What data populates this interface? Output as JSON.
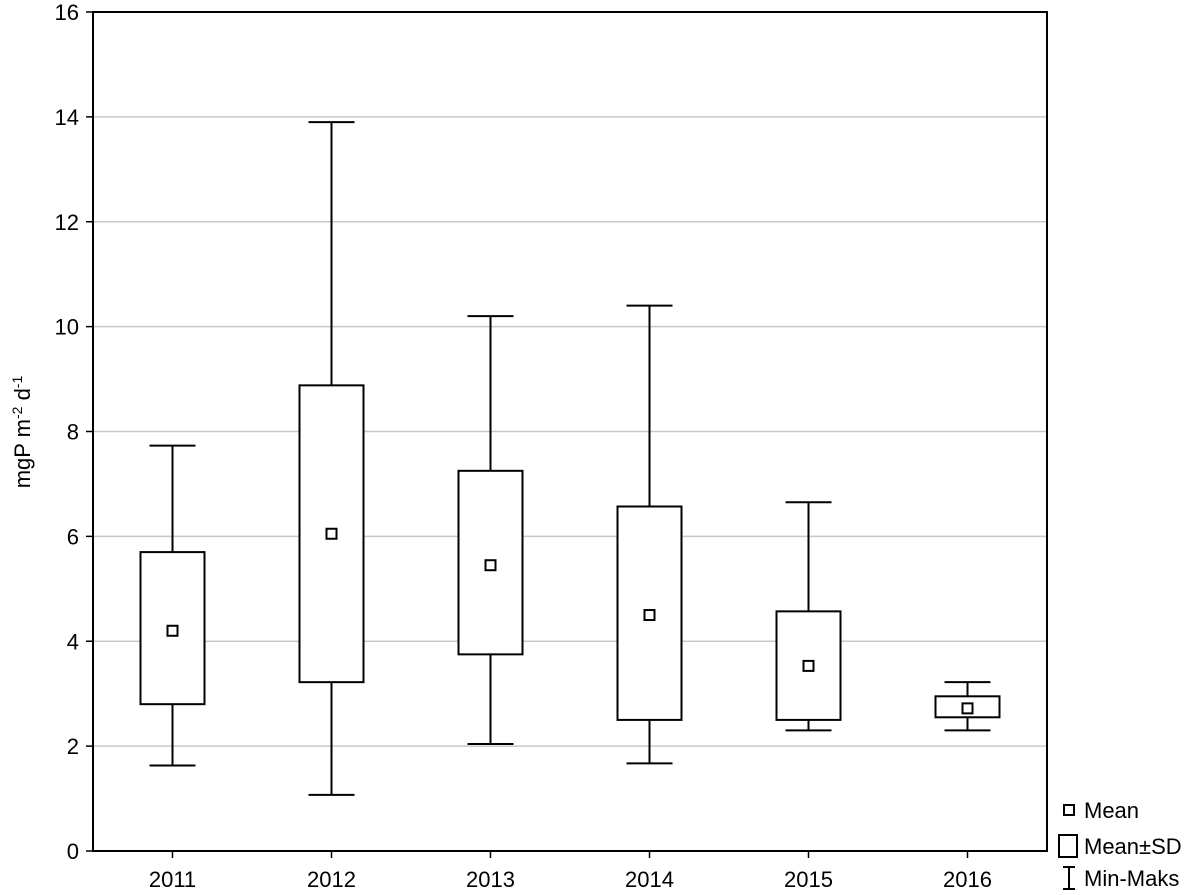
{
  "chart_data": {
    "type": "box",
    "title": "",
    "xlabel": "",
    "ylabel": {
      "base": "mgP m",
      "sup1": "-2",
      "mid": " d",
      "sup2": "-1"
    },
    "ylim": [
      0,
      16
    ],
    "yticks": [
      "0",
      "2",
      "4",
      "6",
      "8",
      "10",
      "12",
      "14",
      "16"
    ],
    "grid": true,
    "categories": [
      "2011",
      "2012",
      "2013",
      "2014",
      "2015",
      "2016"
    ],
    "series": [
      {
        "category": "2011",
        "mean": 4.2,
        "sd_low": 2.8,
        "sd_high": 5.7,
        "min": 1.63,
        "max": 7.73
      },
      {
        "category": "2012",
        "mean": 6.05,
        "sd_low": 3.22,
        "sd_high": 8.88,
        "min": 1.07,
        "max": 13.9
      },
      {
        "category": "2013",
        "mean": 5.45,
        "sd_low": 3.75,
        "sd_high": 7.25,
        "min": 2.04,
        "max": 10.2
      },
      {
        "category": "2014",
        "mean": 4.5,
        "sd_low": 2.5,
        "sd_high": 6.57,
        "min": 1.67,
        "max": 10.4
      },
      {
        "category": "2015",
        "mean": 3.53,
        "sd_low": 2.5,
        "sd_high": 4.57,
        "min": 2.3,
        "max": 6.65
      },
      {
        "category": "2016",
        "mean": 2.72,
        "sd_low": 2.55,
        "sd_high": 2.95,
        "min": 2.3,
        "max": 3.22
      }
    ],
    "legend": {
      "position": "bottom-right",
      "items": [
        {
          "symbol": "mean",
          "label": "Mean"
        },
        {
          "symbol": "box",
          "label": "Mean±SD"
        },
        {
          "symbol": "whisker",
          "label": "Min-Maks"
        }
      ]
    }
  }
}
